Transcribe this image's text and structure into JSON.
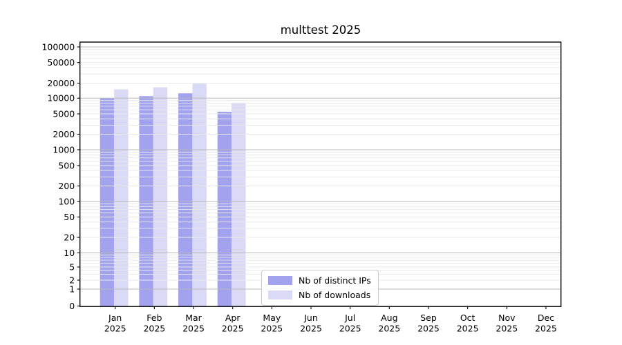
{
  "chart_data": {
    "type": "bar",
    "title": "multtest 2025",
    "categories": [
      "Jan 2025",
      "Feb 2025",
      "Mar 2025",
      "Apr 2025",
      "May 2025",
      "Jun 2025",
      "Jul 2025",
      "Aug 2025",
      "Sep 2025",
      "Oct 2025",
      "Nov 2025",
      "Dec 2025"
    ],
    "series": [
      {
        "name": "Nb of distinct IPs",
        "color": "#a2a2ef",
        "values": [
          10000,
          11000,
          12500,
          5500,
          null,
          null,
          null,
          null,
          null,
          null,
          null,
          null
        ]
      },
      {
        "name": "Nb of downloads",
        "color": "#dadaf7",
        "values": [
          15000,
          16500,
          19500,
          8000,
          null,
          null,
          null,
          null,
          null,
          null,
          null,
          null
        ]
      }
    ],
    "yticks": [
      0,
      1,
      2,
      5,
      10,
      20,
      50,
      100,
      200,
      500,
      1000,
      2000,
      5000,
      10000,
      20000,
      50000,
      100000
    ],
    "ylim": [
      0,
      100000
    ],
    "yscale": "symlog",
    "xlabel": "",
    "ylabel": "",
    "grid": {
      "horizontal": true,
      "log_minor_lines": true,
      "vertical": false
    },
    "legend_position": "lower center"
  },
  "colors": {
    "background": "#ffffff",
    "axis": "#000000",
    "grid_major": "#b8b8b8",
    "grid_minor": "#e8e8e8",
    "legend_border": "#cccccc"
  }
}
